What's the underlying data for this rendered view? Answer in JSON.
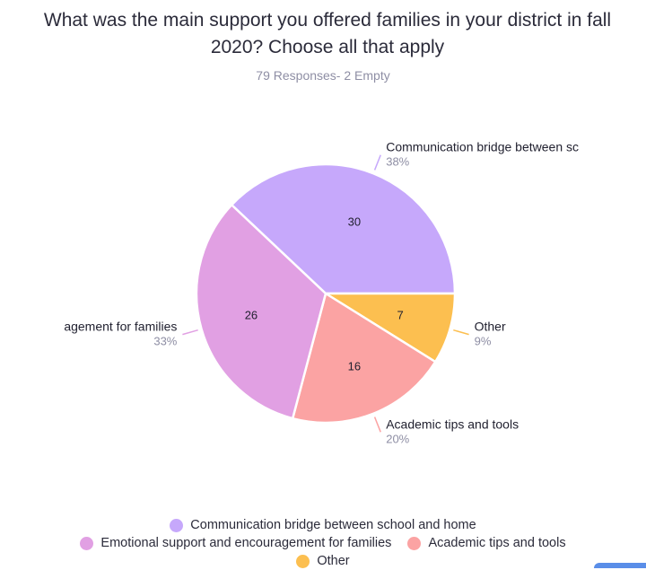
{
  "chart_data": {
    "type": "pie",
    "title": "What was the main support you offered families in your district in fall 2020? Choose all that apply",
    "subtitle": "79 Responses- 2 Empty",
    "slices": [
      {
        "label": "Communication bridge between school and home",
        "short_label": "Communication bridge between sc",
        "value": 30,
        "percent": "38%",
        "color": "#c6a8fb"
      },
      {
        "label": "Other",
        "short_label": "Other",
        "value": 7,
        "percent": "9%",
        "color": "#fcbf50"
      },
      {
        "label": "Academic tips and tools",
        "short_label": "Academic tips and tools",
        "value": 16,
        "percent": "20%",
        "color": "#fba3a3"
      },
      {
        "label": "Emotional support and encouragement for families",
        "short_label": "agement for families",
        "value": 26,
        "percent": "33%",
        "color": "#e1a0e3"
      }
    ],
    "legend_placement": "bottom"
  },
  "legend_rows": [
    [
      0
    ],
    [
      3,
      2
    ],
    [
      1
    ]
  ]
}
